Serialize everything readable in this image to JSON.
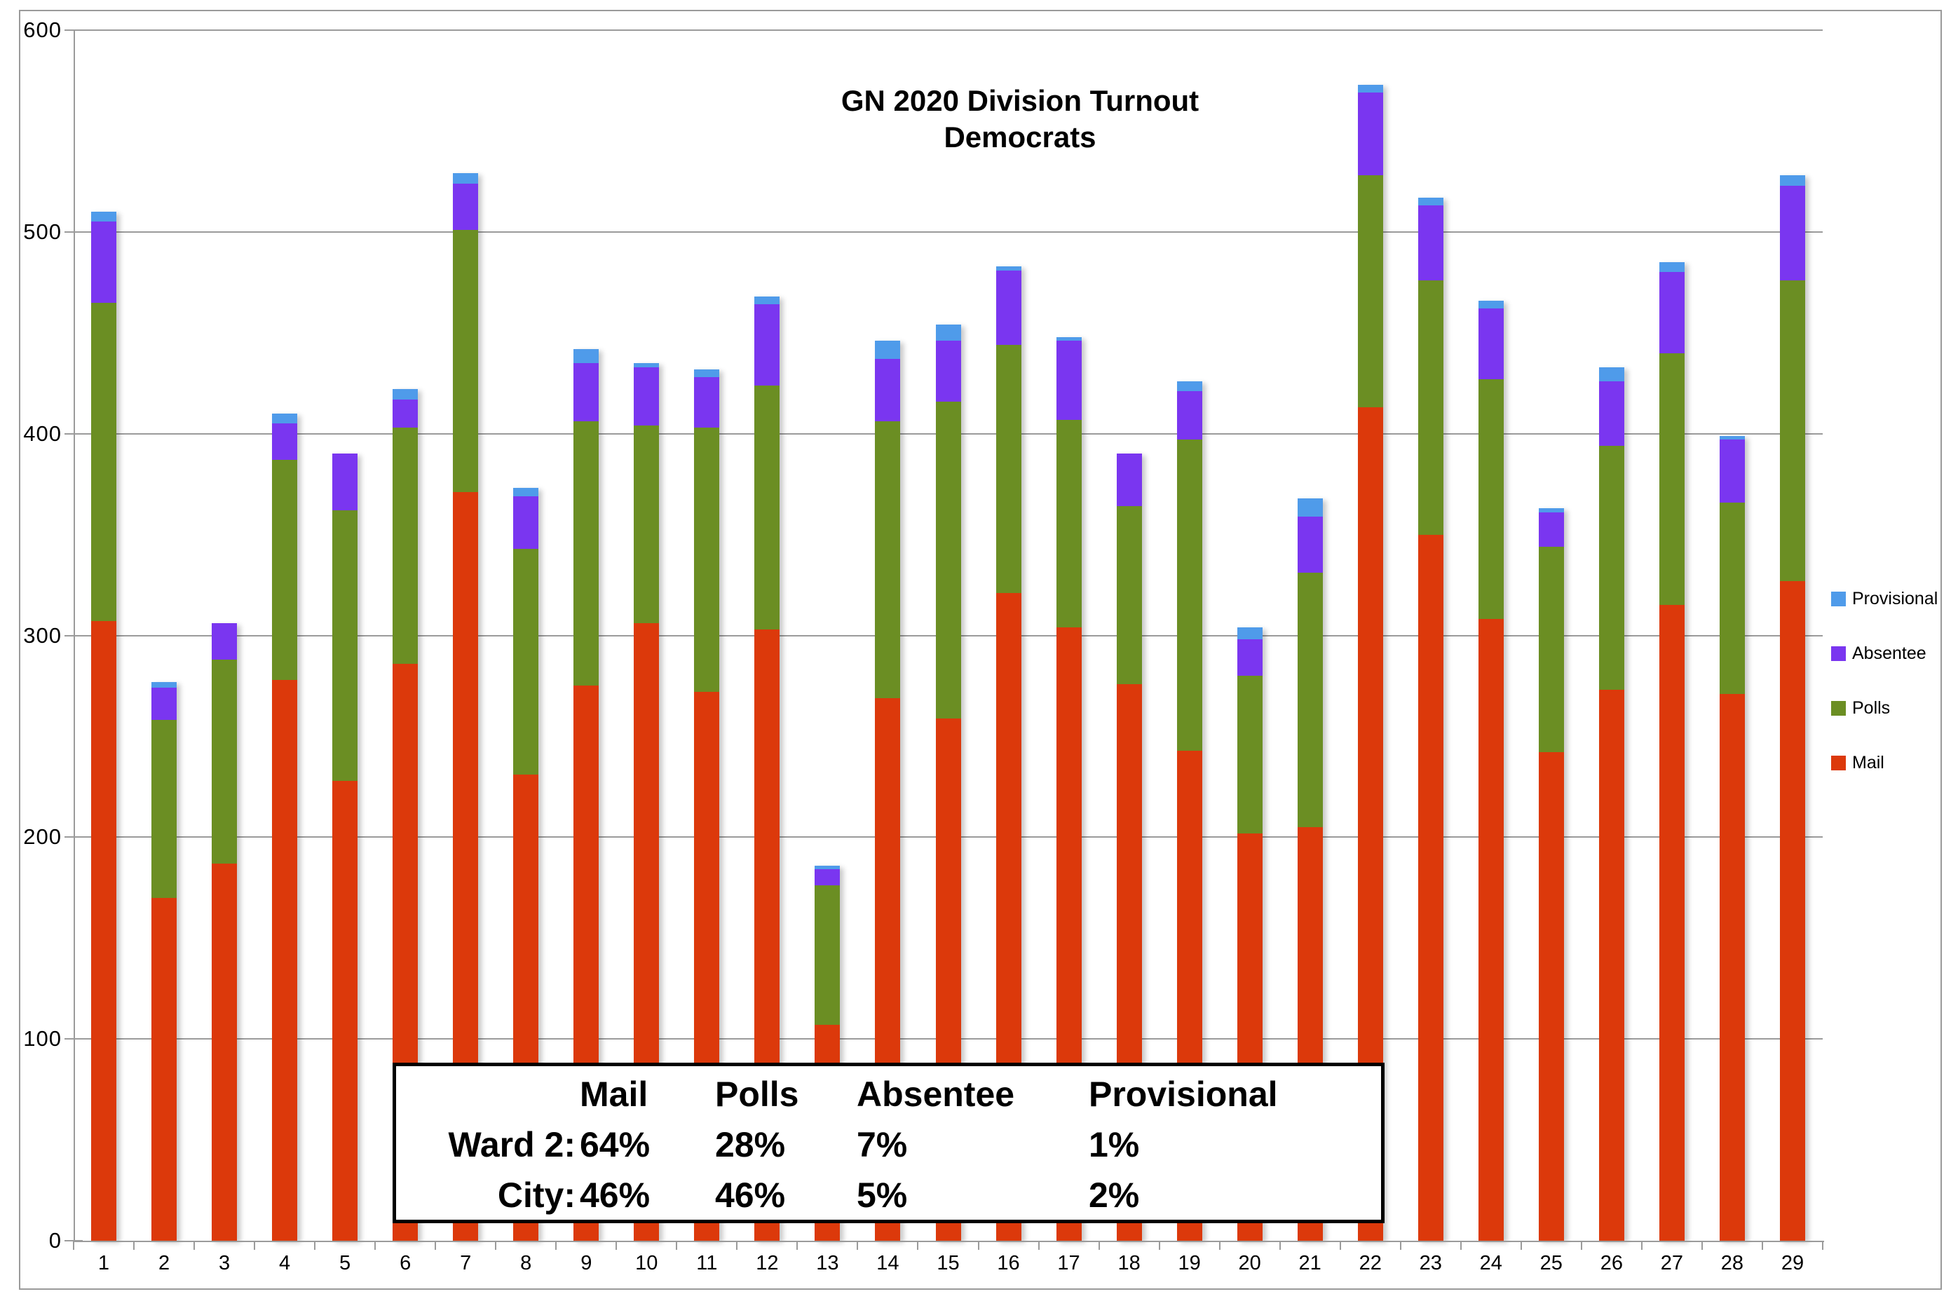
{
  "title": {
    "line1": "GN 2020 Division Turnout",
    "line2": "Democrats"
  },
  "axes": {
    "y_ticks": [
      0,
      100,
      200,
      300,
      400,
      500,
      600
    ],
    "y_max": 600
  },
  "legend": {
    "items": [
      {
        "label": "Provisional",
        "color": "#4f9bea"
      },
      {
        "label": "Absentee",
        "color": "#7a36f0"
      },
      {
        "label": "Polls",
        "color": "#6b8e23"
      },
      {
        "label": "Mail",
        "color": "#dc390b"
      }
    ]
  },
  "annotation_box": {
    "headers": [
      "Mail",
      "Polls",
      "Absentee",
      "Provisional"
    ],
    "rows": [
      {
        "label": "Ward 2:",
        "values": [
          "64%",
          "28%",
          "7%",
          "1%"
        ]
      },
      {
        "label": "City:",
        "values": [
          "46%",
          "46%",
          "5%",
          "2%"
        ]
      }
    ]
  },
  "chart_data": {
    "type": "bar",
    "stacked": true,
    "title": "GN 2020 Division Turnout Democrats",
    "xlabel": "",
    "ylabel": "",
    "ylim": [
      0,
      600
    ],
    "grid": true,
    "legend_position": "right",
    "categories": [
      "1",
      "2",
      "3",
      "4",
      "5",
      "6",
      "7",
      "8",
      "9",
      "10",
      "11",
      "12",
      "13",
      "14",
      "15",
      "16",
      "17",
      "18",
      "19",
      "20",
      "21",
      "22",
      "23",
      "24",
      "25",
      "26",
      "27",
      "28",
      "29"
    ],
    "series": [
      {
        "name": "Mail",
        "color": "#dc390b",
        "values": [
          307,
          170,
          187,
          278,
          228,
          286,
          371,
          231,
          275,
          306,
          272,
          303,
          107,
          269,
          259,
          321,
          304,
          276,
          243,
          202,
          205,
          413,
          350,
          308,
          242,
          273,
          315,
          271,
          327
        ]
      },
      {
        "name": "Polls",
        "color": "#6b8e23",
        "values": [
          158,
          88,
          101,
          109,
          134,
          117,
          130,
          112,
          131,
          98,
          131,
          121,
          69,
          137,
          157,
          123,
          103,
          88,
          154,
          78,
          126,
          115,
          126,
          119,
          102,
          121,
          125,
          95,
          149
        ]
      },
      {
        "name": "Absentee",
        "color": "#7a36f0",
        "values": [
          40,
          16,
          18,
          18,
          28,
          14,
          23,
          26,
          29,
          29,
          25,
          40,
          8,
          31,
          30,
          37,
          39,
          26,
          24,
          18,
          28,
          41,
          37,
          35,
          17,
          32,
          40,
          31,
          47
        ]
      },
      {
        "name": "Provisional",
        "color": "#4f9bea",
        "values": [
          5,
          3,
          0,
          5,
          0,
          5,
          5,
          4,
          7,
          2,
          4,
          4,
          2,
          9,
          8,
          2,
          2,
          0,
          5,
          6,
          9,
          4,
          4,
          4,
          2,
          7,
          5,
          2,
          5
        ]
      }
    ]
  }
}
